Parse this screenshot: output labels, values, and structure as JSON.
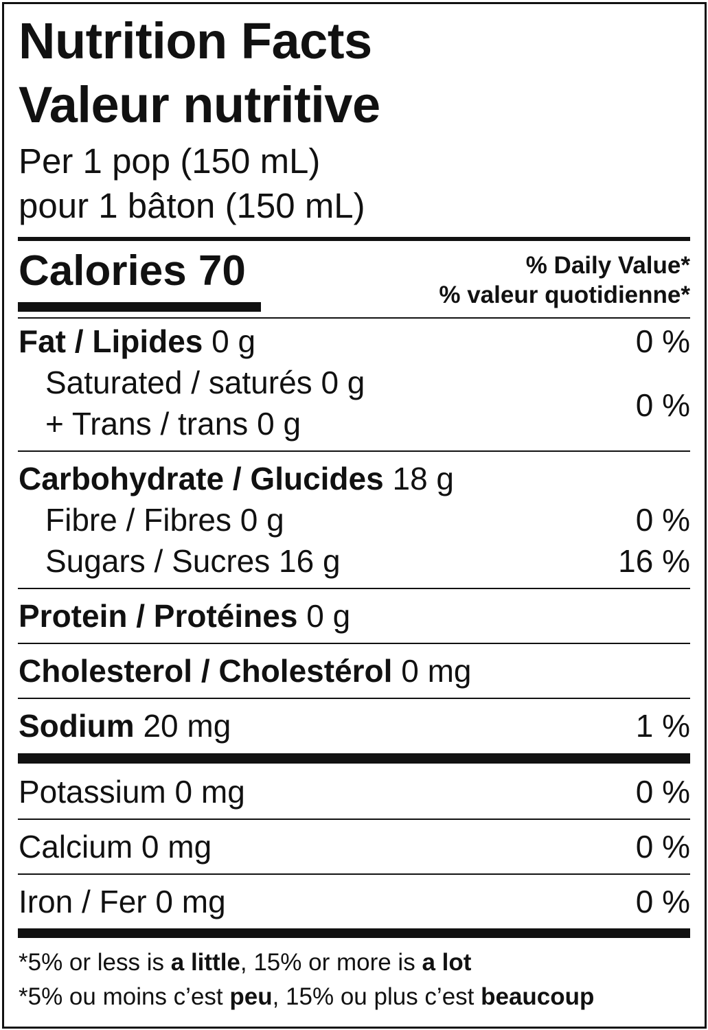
{
  "header": {
    "title_en": "Nutrition Facts",
    "title_fr": "Valeur nutritive",
    "serving_en": "Per 1 pop (150 mL)",
    "serving_fr": "pour 1 bâton (150 mL)"
  },
  "calories": {
    "label": "Calories",
    "value": "70"
  },
  "daily_value": {
    "en": "% Daily Value*",
    "fr": "% valeur quotidienne*"
  },
  "nutrients": {
    "fat": {
      "label": "Fat / Lipides",
      "amount": "0 g",
      "dv": "0 %"
    },
    "saturated": {
      "label": "Saturated / saturés 0 g"
    },
    "trans": {
      "label": "+ Trans / trans 0 g",
      "dv": "0 %"
    },
    "carbohydrate": {
      "label": "Carbohydrate / Glucides",
      "amount": "18 g"
    },
    "fibre": {
      "label": "Fibre / Fibres 0 g",
      "dv": "0 %"
    },
    "sugars": {
      "label": "Sugars / Sucres 16 g",
      "dv": "16 %"
    },
    "protein": {
      "label": "Protein / Protéines",
      "amount": "0 g"
    },
    "cholesterol": {
      "label": "Cholesterol / Cholestérol",
      "amount": "0 mg"
    },
    "sodium": {
      "label": "Sodium",
      "amount": "20 mg",
      "dv": "1 %"
    },
    "potassium": {
      "label": "Potassium 0 mg",
      "dv": "0 %"
    },
    "calcium": {
      "label": "Calcium 0 mg",
      "dv": "0 %"
    },
    "iron": {
      "label": "Iron / Fer 0 mg",
      "dv": "0 %"
    }
  },
  "footnote": {
    "en": {
      "a": "*5% or less is ",
      "b": "a little",
      "c": ", 15% or more is ",
      "d": "a lot"
    },
    "fr": {
      "a": "*5% ou moins c’est ",
      "b": "peu",
      "c": ", 15% ou plus c’est ",
      "d": "beaucoup"
    }
  }
}
